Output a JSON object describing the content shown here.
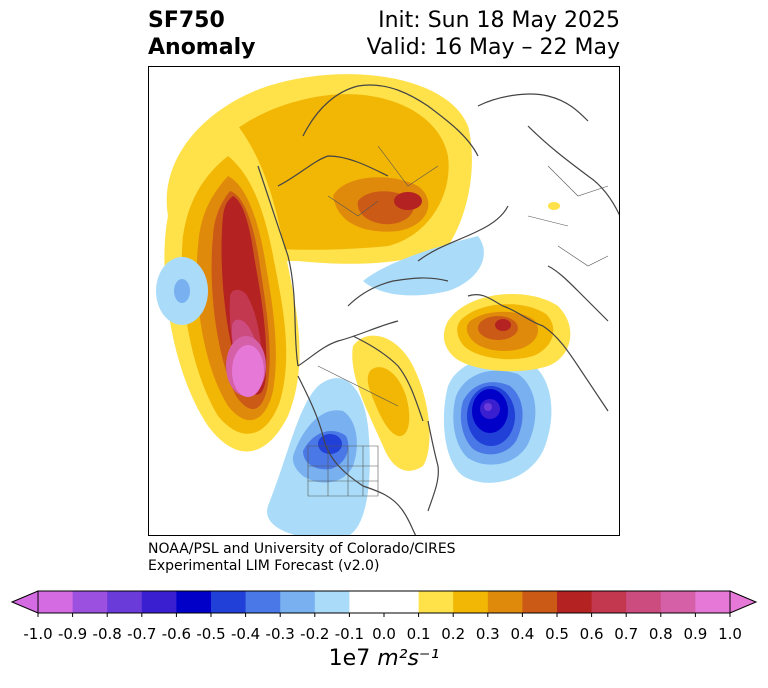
{
  "title": {
    "left_line1": "SF750",
    "left_line2": "Anomaly",
    "right_line1": "Init: Sun 18 May 2025",
    "right_line2": "Valid: 16 May – 22 May"
  },
  "credit": {
    "line1": "NOAA/PSL and University of Colorado/CIRES",
    "line2": "Experimental LIM Forecast (v2.0)"
  },
  "colorbar": {
    "ticks": [
      "-1.0",
      "-0.9",
      "-0.8",
      "-0.7",
      "-0.6",
      "-0.5",
      "-0.4",
      "-0.3",
      "-0.2",
      "-0.1",
      "0.0",
      "0.1",
      "0.2",
      "0.3",
      "0.4",
      "0.5",
      "0.6",
      "0.7",
      "0.8",
      "0.9",
      "1.0"
    ],
    "label_base": "1e7 ",
    "label_unit": "m²s⁻¹",
    "colors": [
      "#d46be3",
      "#9b50e0",
      "#6a3bd8",
      "#3a1fd0",
      "#0000c8",
      "#2040d8",
      "#4a78e6",
      "#78b0f0",
      "#aadcfa",
      "#ffffff",
      "#ffffff",
      "#ffe14a",
      "#f2b705",
      "#e08a0c",
      "#cc5a17",
      "#b42222",
      "#c3374f",
      "#cc4c80",
      "#d560a8",
      "#e678d8"
    ]
  },
  "map": {
    "projection": "north polar stereographic",
    "features": [
      "positive anomaly over Arctic/Siberia",
      "strong positive anomaly over NE Pacific",
      "negative anomaly over western US",
      "negative anomaly over North Atlantic",
      "positive anomaly over Europe",
      "weak negative anomaly over mid Pacific"
    ]
  }
}
